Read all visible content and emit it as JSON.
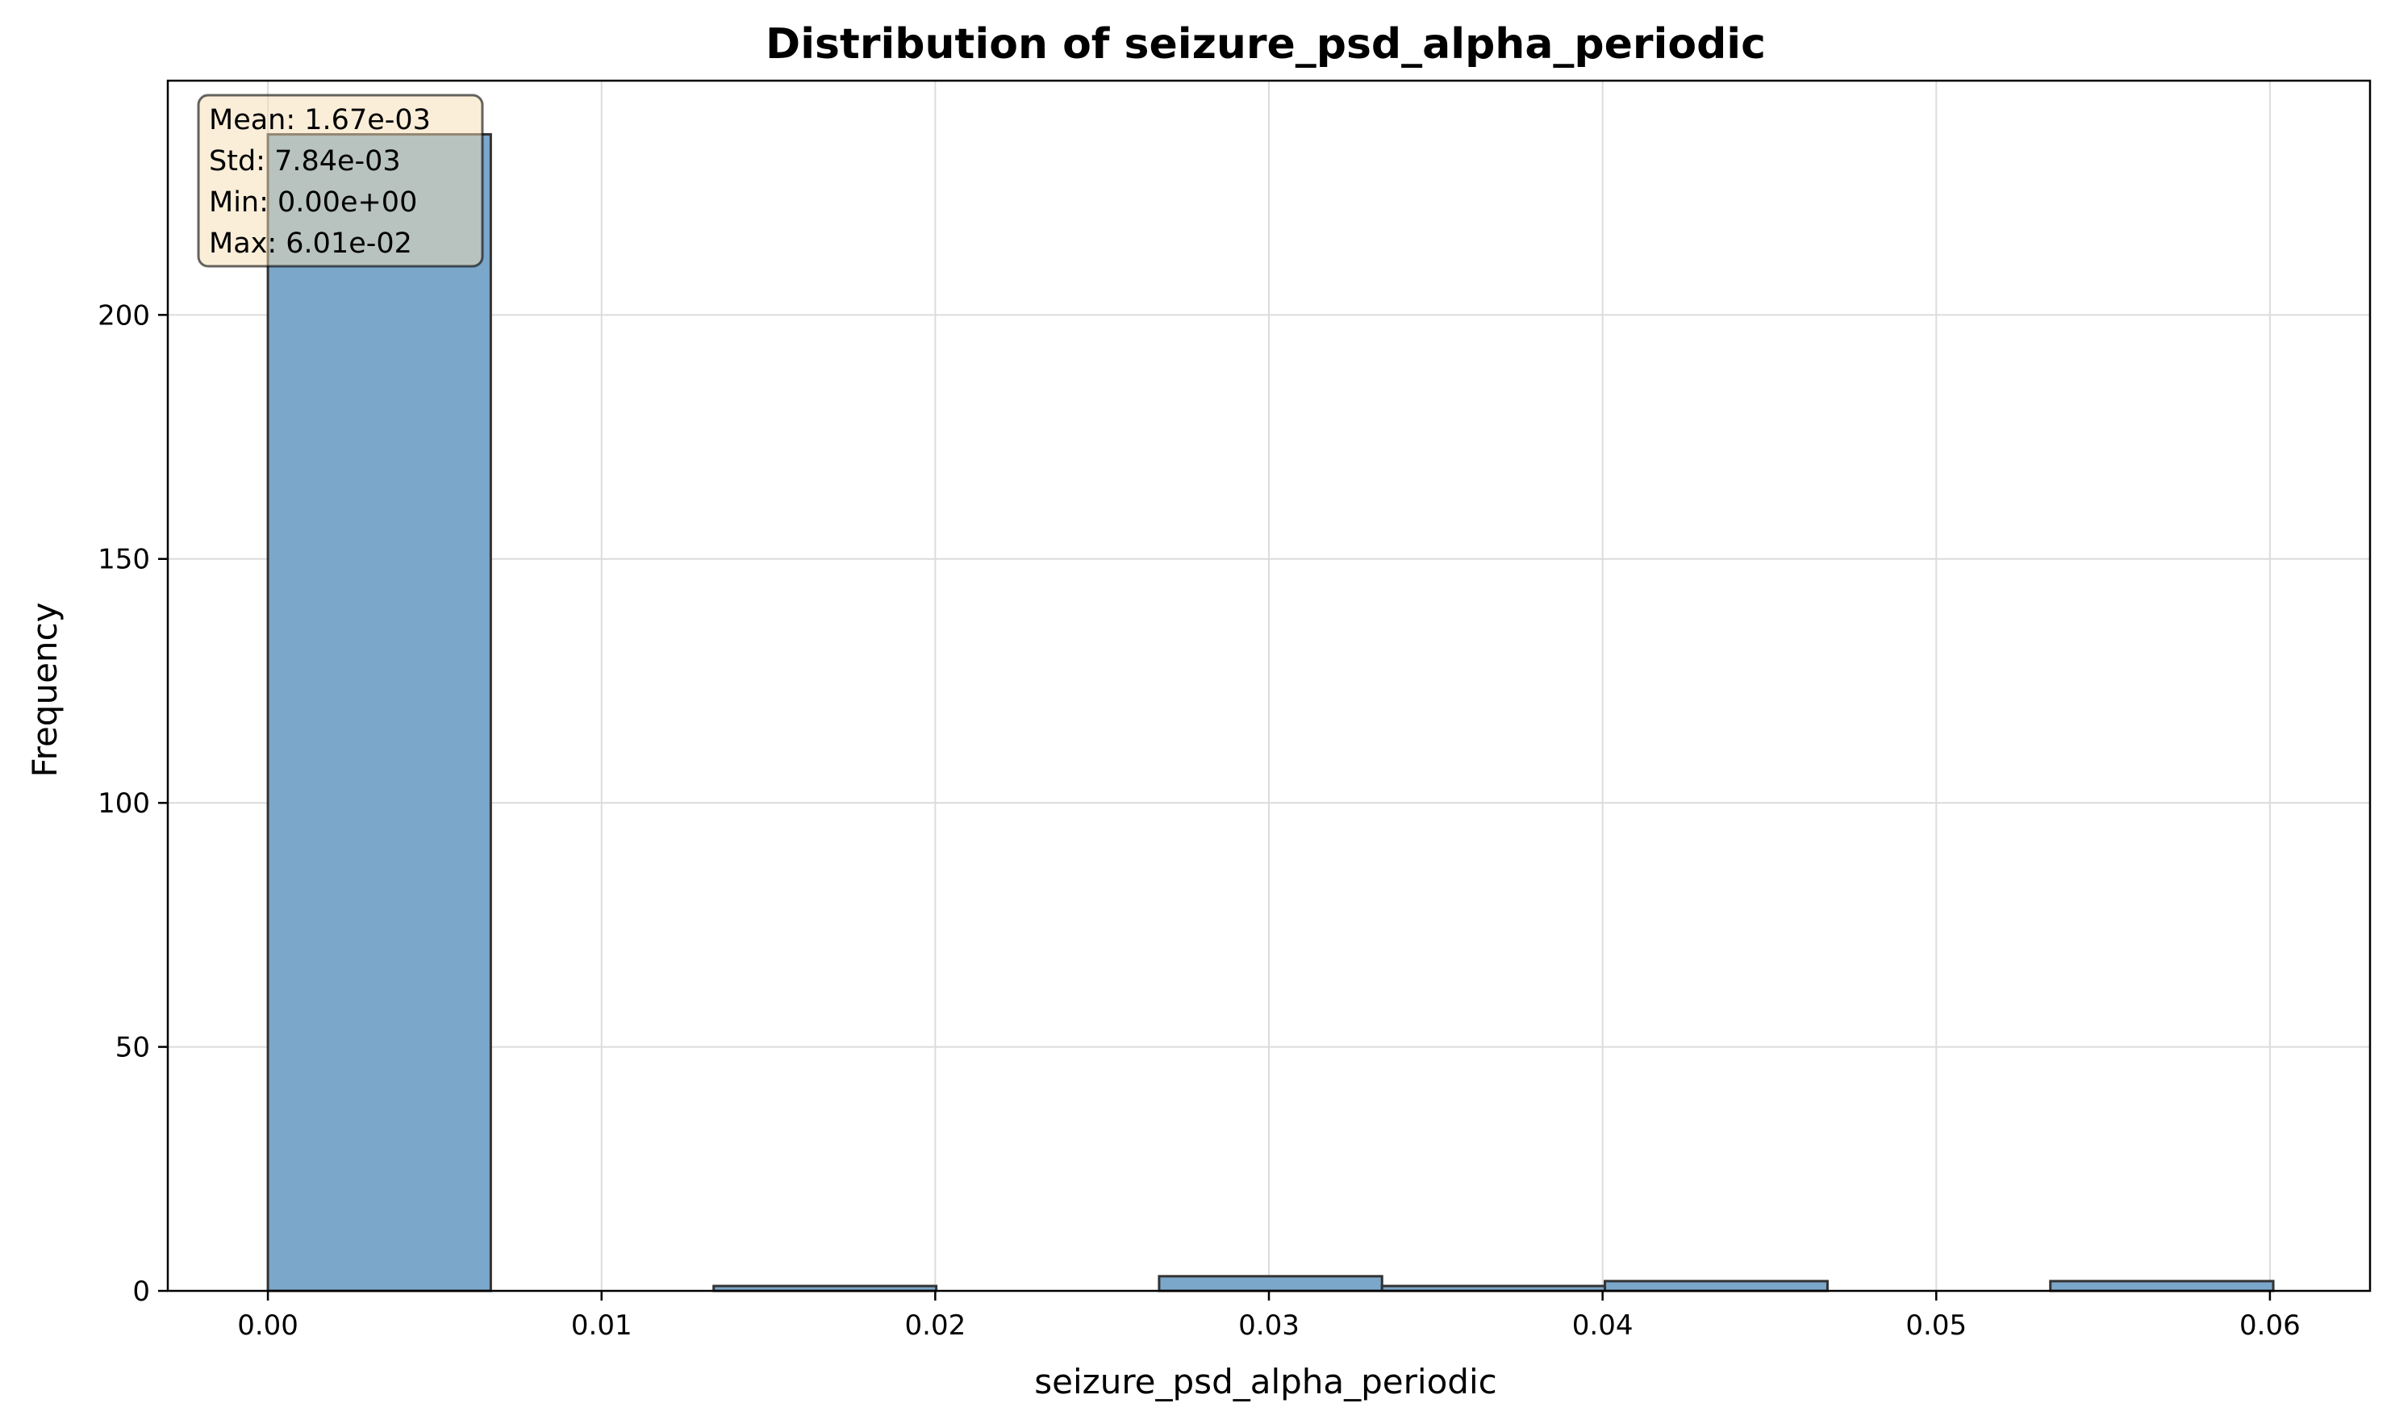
{
  "chart_data": {
    "type": "bar",
    "title": "Distribution of seizure_psd_alpha_periodic",
    "xlabel": "seizure_psd_alpha_periodic",
    "ylabel": "Frequency",
    "xlim": [
      -0.003,
      0.063
    ],
    "ylim": [
      0,
      248
    ],
    "bar_color": "#7ba7cb",
    "edge_color": "#333333",
    "grid": true,
    "bins": [
      {
        "x0": 0.0,
        "x1": 0.00668,
        "count": 237
      },
      {
        "x0": 0.00668,
        "x1": 0.01336,
        "count": 0
      },
      {
        "x0": 0.01336,
        "x1": 0.02003,
        "count": 1
      },
      {
        "x0": 0.02003,
        "x1": 0.02671,
        "count": 0
      },
      {
        "x0": 0.02671,
        "x1": 0.03339,
        "count": 3
      },
      {
        "x0": 0.03339,
        "x1": 0.04007,
        "count": 1
      },
      {
        "x0": 0.04007,
        "x1": 0.04674,
        "count": 2
      },
      {
        "x0": 0.04674,
        "x1": 0.05342,
        "count": 0
      },
      {
        "x0": 0.05342,
        "x1": 0.0601,
        "count": 2
      }
    ],
    "xticks": [
      {
        "value": 0.0,
        "label": "0.00"
      },
      {
        "value": 0.01,
        "label": "0.01"
      },
      {
        "value": 0.02,
        "label": "0.02"
      },
      {
        "value": 0.03,
        "label": "0.03"
      },
      {
        "value": 0.04,
        "label": "0.04"
      },
      {
        "value": 0.05,
        "label": "0.05"
      },
      {
        "value": 0.06,
        "label": "0.06"
      }
    ],
    "yticks": [
      {
        "value": 0,
        "label": "0"
      },
      {
        "value": 50,
        "label": "50"
      },
      {
        "value": 100,
        "label": "100"
      },
      {
        "value": 150,
        "label": "150"
      },
      {
        "value": 200,
        "label": "200"
      }
    ],
    "stats": {
      "location": "top-left",
      "lines": [
        "Mean: 1.67e-03",
        "Std: 7.84e-03",
        "Min: 0.00e+00",
        "Max: 6.01e-02"
      ],
      "box_color": "#f5deb3"
    }
  }
}
